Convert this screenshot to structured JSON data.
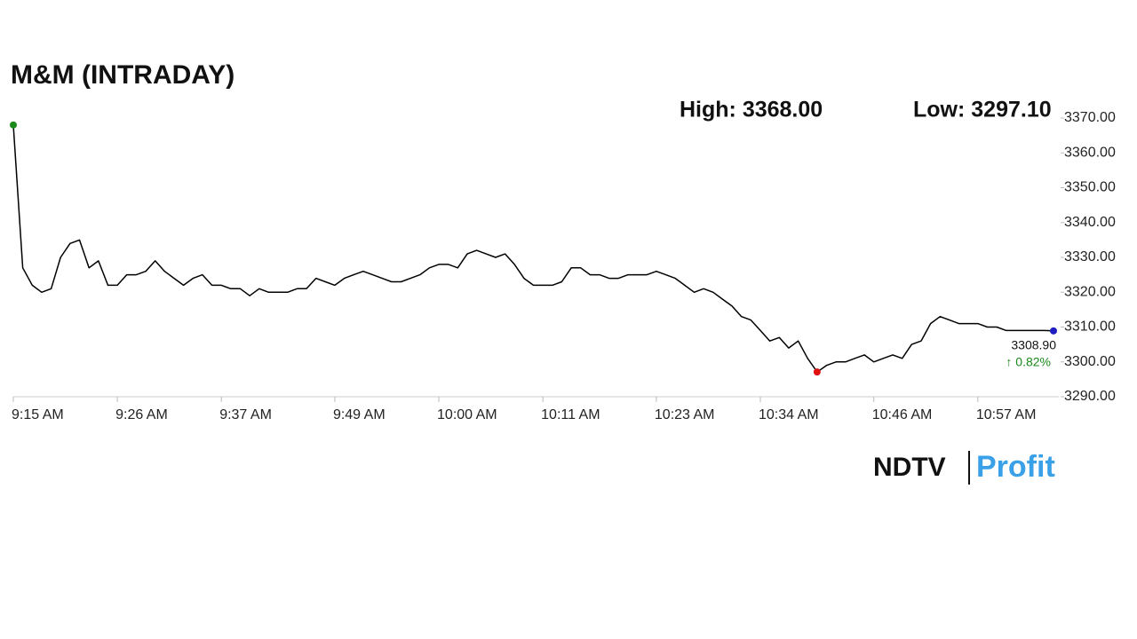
{
  "chart_data": {
    "type": "line",
    "title": "M&M (INTRADAY)",
    "high_label": "High: 3368.00",
    "low_label": "Low: 3297.10",
    "categories": [
      "9:15 AM",
      null,
      null,
      null,
      null,
      null,
      null,
      null,
      null,
      null,
      null,
      "9:26 AM",
      null,
      null,
      null,
      null,
      null,
      null,
      null,
      null,
      null,
      null,
      "9:37 AM",
      null,
      null,
      null,
      null,
      null,
      null,
      null,
      null,
      null,
      null,
      null,
      "9:49 AM",
      null,
      null,
      null,
      null,
      null,
      null,
      null,
      null,
      null,
      null,
      "10:00 AM",
      null,
      null,
      null,
      null,
      null,
      null,
      null,
      null,
      null,
      null,
      "10:11 AM",
      null,
      null,
      null,
      null,
      null,
      null,
      null,
      null,
      null,
      null,
      null,
      "10:23 AM",
      null,
      null,
      null,
      null,
      null,
      null,
      null,
      null,
      null,
      null,
      "10:34 AM",
      null,
      null,
      null,
      null,
      null,
      null,
      null,
      null,
      null,
      null,
      null,
      "10:46 AM",
      null,
      null,
      null,
      null,
      null,
      null,
      null,
      null,
      null,
      null,
      "10:57 AM",
      null,
      null,
      null,
      null,
      null,
      null,
      null,
      null
    ],
    "series": [
      {
        "color": "#000000",
        "values": [
          3368,
          3327,
          3322,
          3320,
          3321,
          3330,
          3334,
          3335,
          3327,
          3329,
          3322,
          3322,
          3325,
          3325,
          3326,
          3329,
          3326,
          3324,
          3322,
          3324,
          3325,
          3322,
          3322,
          3321,
          3321,
          3319,
          3321,
          3320,
          3320,
          3320,
          3321,
          3321,
          3324,
          3323,
          3322,
          3324,
          3325,
          3326,
          3325,
          3324,
          3323,
          3323,
          3324,
          3325,
          3327,
          3328,
          3328,
          3327,
          3331,
          3332,
          3331,
          3330,
          3331,
          3328,
          3324,
          3322,
          3322,
          3322,
          3323,
          3327,
          3327,
          3325,
          3325,
          3324,
          3324,
          3325,
          3325,
          3325,
          3326,
          3325,
          3324,
          3322,
          3320,
          3321,
          3320,
          3318,
          3316,
          3313,
          3312,
          3309,
          3306,
          3307,
          3304,
          3306,
          3301,
          3297.1,
          3299,
          3300,
          3300,
          3301,
          3302,
          3300,
          3301,
          3302,
          3301,
          3305,
          3306,
          3311,
          3313,
          3312,
          3311,
          3311,
          3311,
          3310,
          3310,
          3309,
          3309,
          3309,
          3309,
          3309,
          3308.9
        ]
      }
    ],
    "markers": {
      "high_color": "#1a8a1a",
      "low_color": "#e01010",
      "last_color": "#1f1fbf"
    },
    "last_value_label": "3308.90",
    "change_label": "↑ 0.82%",
    "change_color": "#1a8a1a",
    "ylim": [
      3290,
      3370
    ],
    "yticks": [
      {
        "value": 3290,
        "label": "3290.00"
      },
      {
        "value": 3300,
        "label": "3300.00"
      },
      {
        "value": 3310,
        "label": "3310.00"
      },
      {
        "value": 3320,
        "label": "3320.00"
      },
      {
        "value": 3330,
        "label": "3330.00"
      },
      {
        "value": 3340,
        "label": "3340.00"
      },
      {
        "value": 3350,
        "label": "3350.00"
      },
      {
        "value": 3360,
        "label": "3360.00"
      },
      {
        "value": 3370,
        "label": "3370.00"
      }
    ]
  },
  "logo": {
    "left": "NDTV",
    "right": "Profit"
  }
}
